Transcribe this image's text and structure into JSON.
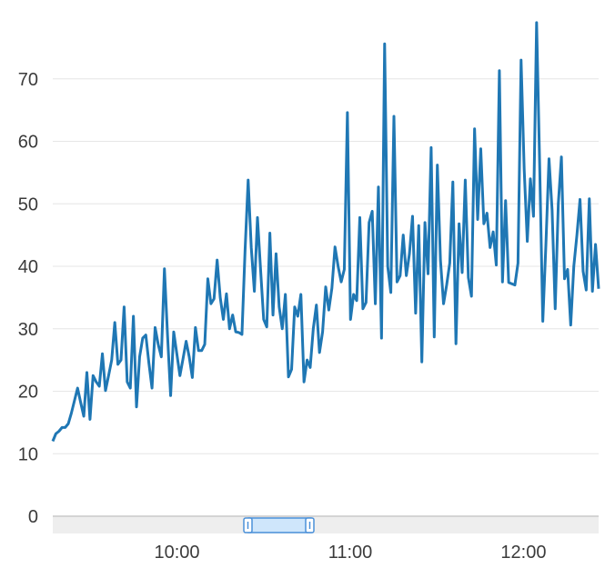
{
  "chart_data": {
    "type": "line",
    "title": "",
    "xlabel": "",
    "ylabel": "",
    "ylim": [
      0,
      80
    ],
    "grid": "horizontal",
    "y_ticks": [
      "0",
      "10",
      "20",
      "30",
      "40",
      "50",
      "60",
      "70"
    ],
    "x_ticks": [
      "10:00",
      "11:00",
      "12:00"
    ],
    "x_start": "09:17",
    "x_end": "12:26",
    "colors": {
      "line": "#1f77b4",
      "grid": "#e6e6e6",
      "scrollbar_track": "#eeeeee",
      "scrollbar_thumb": "#cfe6fb",
      "scrollbar_border": "#4a90d9"
    },
    "series": [
      {
        "name": "",
        "values": [
          12,
          13.2,
          13.6,
          14.2,
          14.2,
          14.8,
          16.5,
          18.5,
          20.5,
          18.2,
          16,
          23,
          15.5,
          22.5,
          21.5,
          20.8,
          26,
          20.1,
          22.5,
          25,
          31,
          24.3,
          25,
          33.5,
          21.5,
          20.5,
          32,
          17.5,
          25.5,
          28.5,
          29,
          24.5,
          20.5,
          30.2,
          27.5,
          25.5,
          39.6,
          29,
          19.3,
          29.5,
          26,
          22.5,
          25.2,
          28,
          25.5,
          22.2,
          30.2,
          26.5,
          26.5,
          27.5,
          38,
          34,
          34.8,
          41,
          35,
          31.5,
          35.6,
          30,
          32.2,
          29.5,
          29.4,
          29.1,
          42.5,
          53.8,
          43,
          36,
          47.8,
          39.5,
          31.5,
          30.3,
          45.3,
          32.2,
          42,
          33.5,
          30,
          35.5,
          22.3,
          23.5,
          33.5,
          32,
          35.5,
          21.5,
          25,
          23.8,
          30,
          33.8,
          26.2,
          29.5,
          36.7,
          33,
          36.5,
          43.1,
          40,
          37.5,
          39.5,
          64.6,
          31.5,
          35.5,
          34.5,
          47.8,
          33.2,
          34.2,
          47,
          48.8,
          34,
          52.7,
          28.5,
          75.6,
          40,
          35.8,
          64,
          37.5,
          38.5,
          45,
          38.5,
          42,
          48,
          32.5,
          46.5,
          24.7,
          47,
          38.8,
          59,
          28.7,
          56.2,
          41,
          34,
          37,
          40.5,
          53.5,
          27.6,
          46.8,
          39,
          53.8,
          38.2,
          35.2,
          62,
          47.5,
          58.8,
          46.8,
          48.5,
          43,
          45.5,
          40.2,
          71.3,
          37.5,
          50.5,
          37.4,
          37.2,
          37,
          40.5,
          73,
          55.5,
          44,
          54,
          48,
          79,
          56,
          31.2,
          43.5,
          57.2,
          49,
          33.2,
          50,
          57.5,
          38,
          39.5,
          30.6,
          40,
          45,
          50.7,
          39.2,
          36.2,
          50.8,
          36,
          43.5,
          36.4
        ]
      }
    ]
  }
}
